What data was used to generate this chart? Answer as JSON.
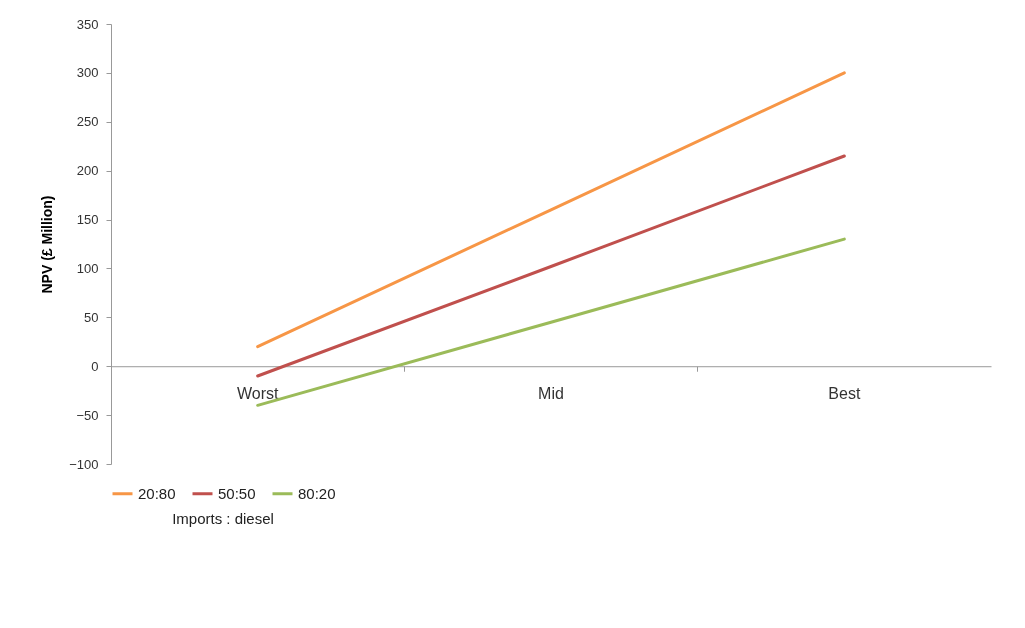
{
  "chart_data": {
    "type": "line",
    "ylabel": "NPV (£ Million)",
    "xlabel": "Imports : diesel",
    "categories": [
      "Worst",
      "Mid",
      "Best"
    ],
    "series": [
      {
        "name": "20:80",
        "color": "#f79646",
        "values": [
          20,
          160,
          300
        ]
      },
      {
        "name": "50:50",
        "color": "#c0504d",
        "values": [
          -10,
          102,
          215
        ]
      },
      {
        "name": "80:20",
        "color": "#9bbb59",
        "values": [
          -40,
          45,
          130
        ]
      }
    ],
    "ylim": [
      -100,
      350
    ],
    "yticks": [
      -100,
      -50,
      0,
      50,
      100,
      150,
      200,
      250,
      300,
      350
    ],
    "grid": false,
    "legend": "bottom",
    "marker": "none",
    "line_style": "solid"
  }
}
